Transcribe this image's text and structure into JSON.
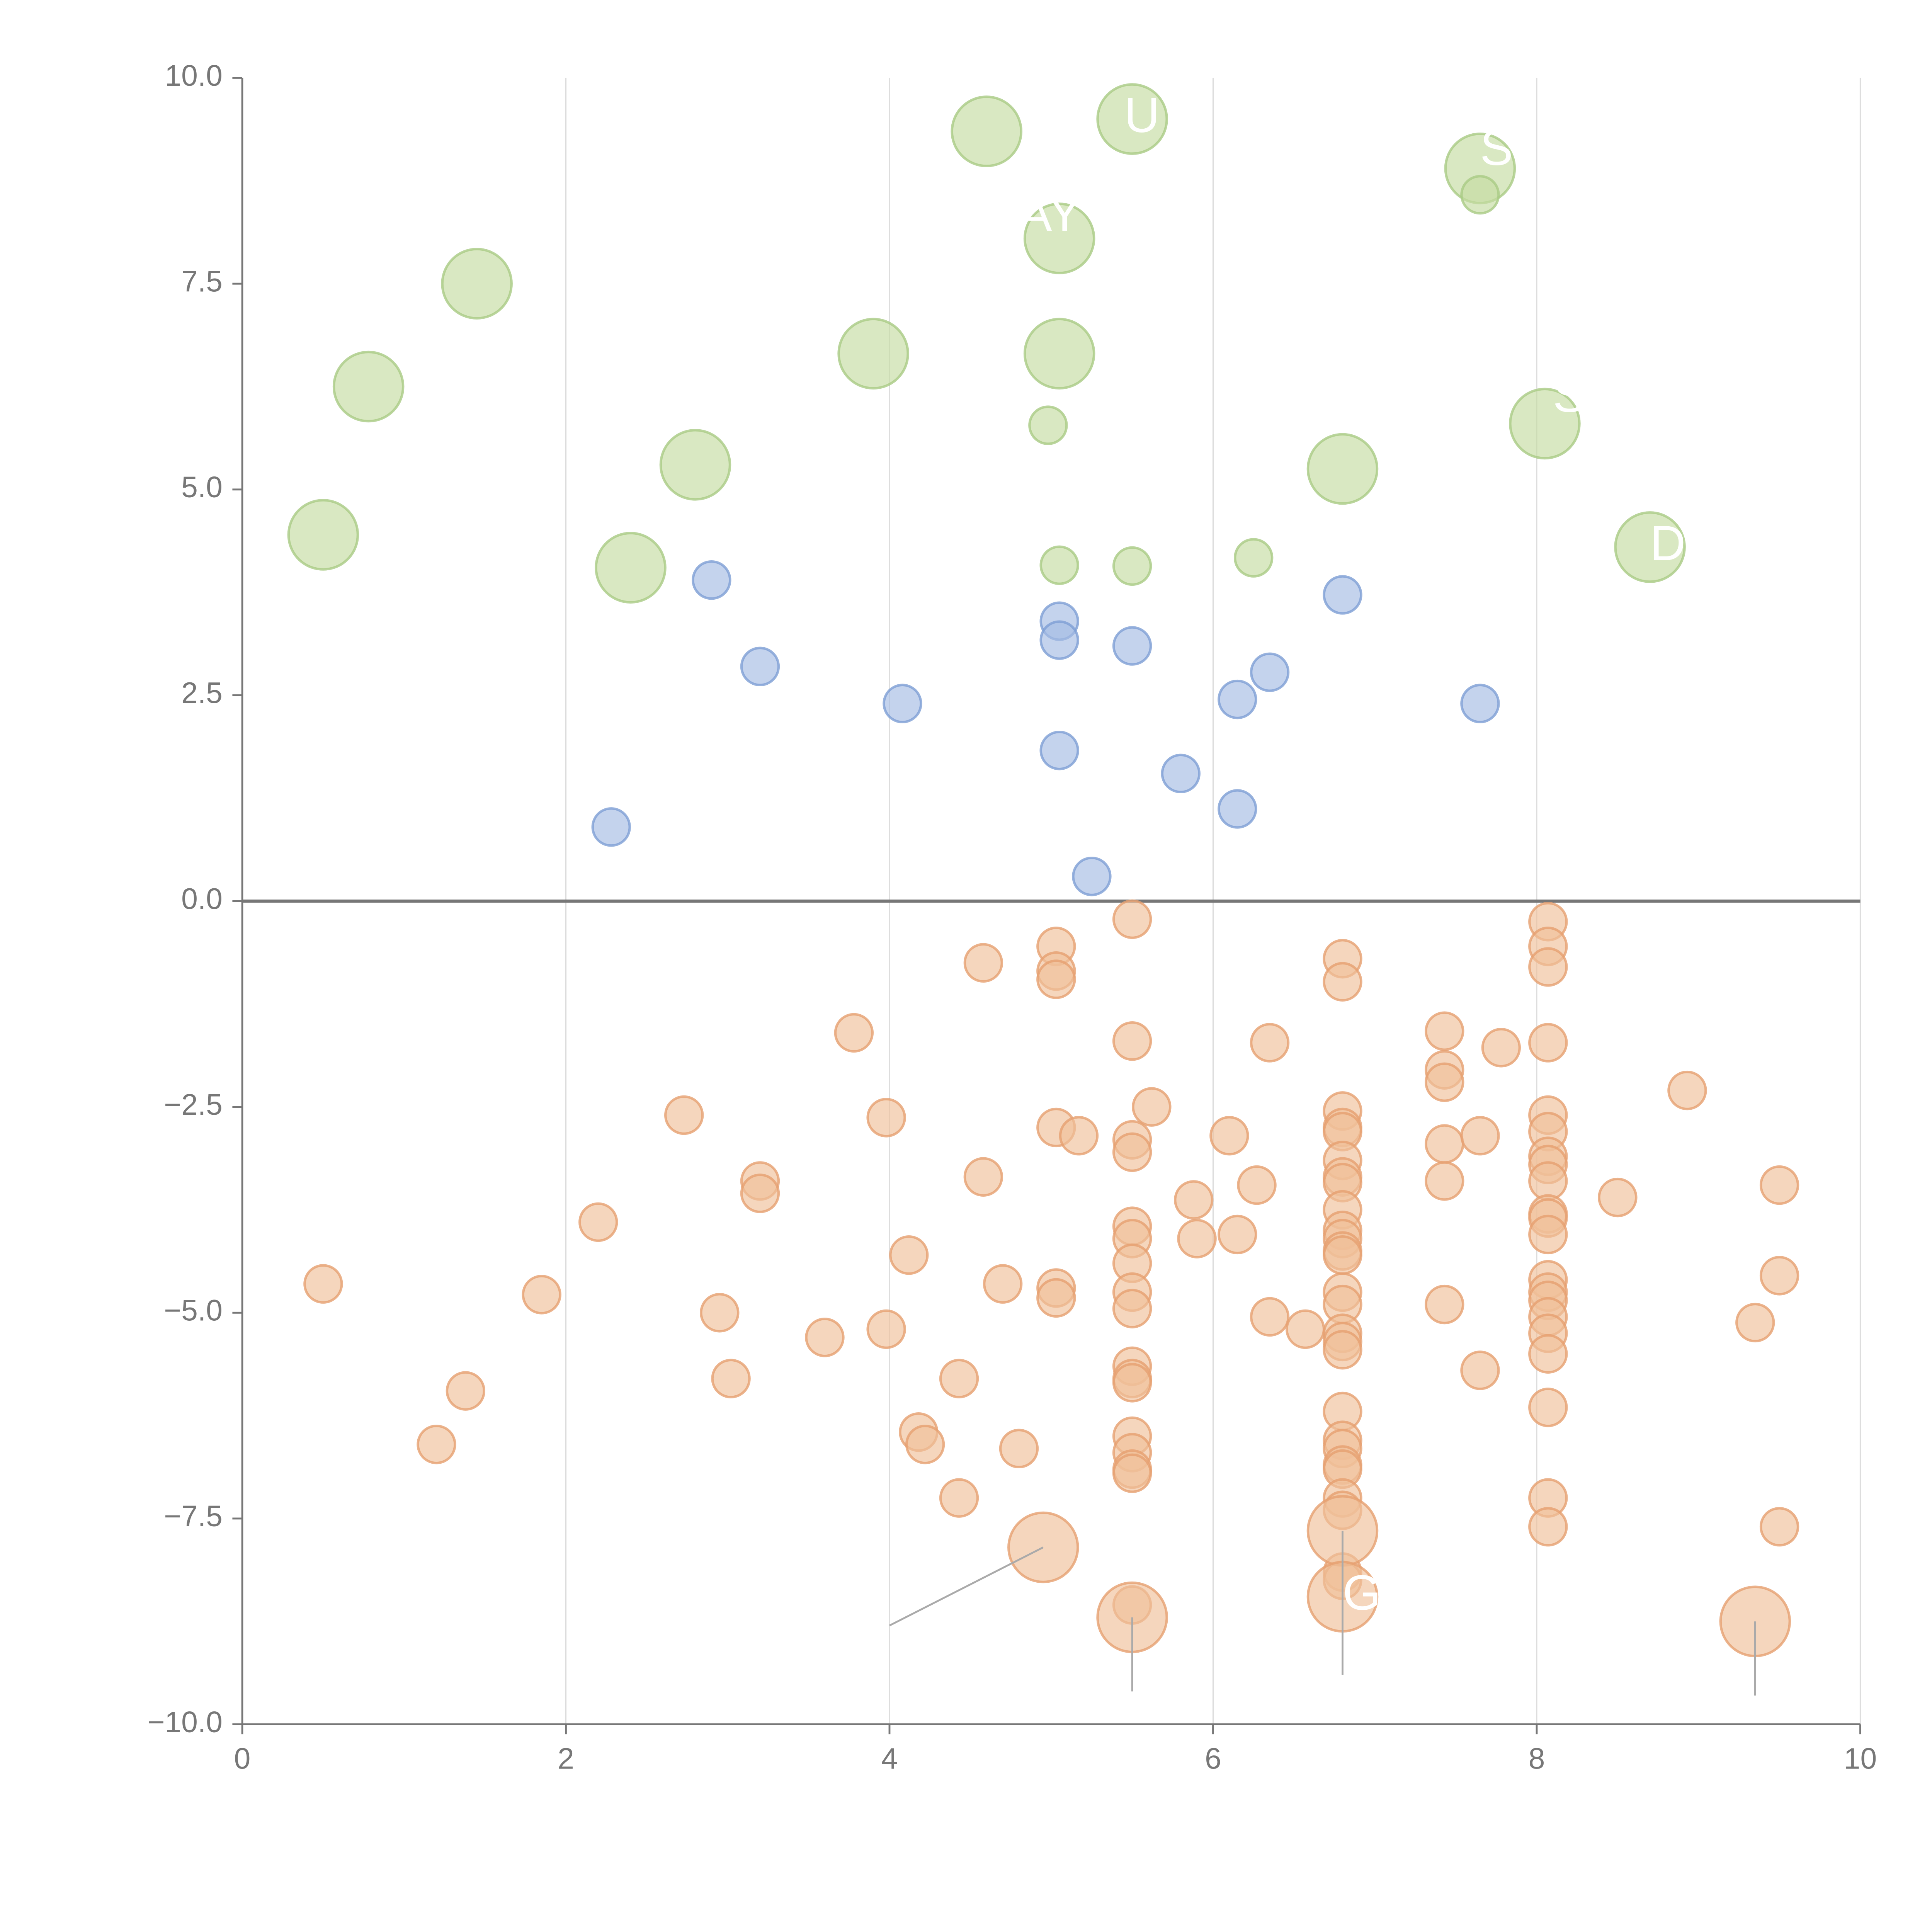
{
  "colors": {
    "green_fill": "#c5dca2",
    "green_stroke": "#a9cb84",
    "blue_fill": "#a4bce3",
    "blue_stroke": "#7e9fd4",
    "orange_fill": "#f0c09a",
    "orange_stroke": "#e6a070",
    "axis": "#777777",
    "grid": "#dddddd",
    "zero_line": "#777777",
    "tick_text": "#777777",
    "label_text": "#ffffff",
    "leader_dark": "#aaaaaa",
    "leader_light": "#ffffff"
  },
  "chart_data": {
    "type": "scatter",
    "title": "",
    "xlabel": "",
    "ylabel": "",
    "xlim": [
      0,
      10
    ],
    "ylim": [
      -10,
      10
    ],
    "grid": "vertical",
    "x_ticks": [
      "0",
      "2",
      "4",
      "6",
      "8",
      "10"
    ],
    "y_ticks": [
      "10.0",
      "7.5",
      "5.0",
      "2.5",
      "0.0",
      "−2.5",
      "−5.0",
      "−7.5",
      "−10.0"
    ],
    "series": [
      {
        "name": "green-large",
        "color": "#c5dca2",
        "size": "large",
        "points": [
          [
            0.5,
            4.45
          ],
          [
            0.78,
            6.25
          ],
          [
            1.45,
            7.5
          ],
          [
            2.4,
            4.05
          ],
          [
            2.8,
            5.3
          ],
          [
            3.9,
            6.65
          ],
          [
            4.6,
            9.35
          ],
          [
            5.05,
            8.05
          ],
          [
            5.05,
            6.65
          ],
          [
            5.5,
            9.5
          ],
          [
            6.8,
            5.25
          ],
          [
            7.65,
            8.9
          ],
          [
            8.05,
            5.8
          ],
          [
            8.7,
            4.3
          ]
        ]
      },
      {
        "name": "green-small",
        "color": "#c5dca2",
        "size": "small",
        "points": [
          [
            4.98,
            5.78
          ],
          [
            5.05,
            4.08
          ],
          [
            5.5,
            4.07
          ],
          [
            6.25,
            4.17
          ],
          [
            7.65,
            8.58
          ]
        ]
      },
      {
        "name": "blue",
        "color": "#a4bce3",
        "size": "small",
        "points": [
          [
            2.28,
            0.9
          ],
          [
            2.9,
            3.9
          ],
          [
            3.2,
            2.85
          ],
          [
            4.08,
            2.4
          ],
          [
            5.05,
            3.4
          ],
          [
            5.05,
            3.17
          ],
          [
            5.05,
            1.83
          ],
          [
            5.25,
            0.3
          ],
          [
            5.5,
            3.1
          ],
          [
            5.8,
            1.55
          ],
          [
            6.15,
            2.45
          ],
          [
            6.15,
            1.12
          ],
          [
            6.35,
            2.78
          ],
          [
            6.8,
            3.72
          ],
          [
            7.65,
            2.4
          ]
        ]
      },
      {
        "name": "orange-small",
        "color": "#f0c09a",
        "size": "small",
        "points": [
          [
            0.5,
            -4.65
          ],
          [
            1.2,
            -6.6
          ],
          [
            1.38,
            -5.95
          ],
          [
            1.85,
            -4.78
          ],
          [
            2.2,
            -3.9
          ],
          [
            2.73,
            -2.6
          ],
          [
            2.95,
            -5.0
          ],
          [
            3.02,
            -5.8
          ],
          [
            3.2,
            -3.4
          ],
          [
            3.2,
            -3.55
          ],
          [
            3.6,
            -5.3
          ],
          [
            3.78,
            -1.6
          ],
          [
            3.98,
            -2.63
          ],
          [
            3.98,
            -5.2
          ],
          [
            4.12,
            -4.3
          ],
          [
            4.18,
            -6.45
          ],
          [
            4.22,
            -6.6
          ],
          [
            4.43,
            -7.25
          ],
          [
            4.43,
            -5.8
          ],
          [
            4.58,
            -0.75
          ],
          [
            4.58,
            -3.35
          ],
          [
            4.7,
            -4.65
          ],
          [
            4.8,
            -6.65
          ],
          [
            5.03,
            -0.55
          ],
          [
            5.03,
            -0.85
          ],
          [
            5.03,
            -0.95
          ],
          [
            5.03,
            -2.75
          ],
          [
            5.03,
            -4.7
          ],
          [
            5.03,
            -4.82
          ],
          [
            5.17,
            -2.85
          ],
          [
            5.5,
            -0.22
          ],
          [
            5.5,
            -1.7
          ],
          [
            5.5,
            -2.9
          ],
          [
            5.5,
            -3.05
          ],
          [
            5.5,
            -3.95
          ],
          [
            5.5,
            -4.1
          ],
          [
            5.5,
            -4.4
          ],
          [
            5.5,
            -4.75
          ],
          [
            5.5,
            -4.95
          ],
          [
            5.5,
            -5.65
          ],
          [
            5.5,
            -5.8
          ],
          [
            5.5,
            -5.85
          ],
          [
            5.5,
            -6.5
          ],
          [
            5.5,
            -6.7
          ],
          [
            5.5,
            -6.9
          ],
          [
            5.5,
            -6.95
          ],
          [
            5.5,
            -8.55
          ],
          [
            5.62,
            -2.5
          ],
          [
            5.88,
            -3.63
          ],
          [
            5.9,
            -4.1
          ],
          [
            6.1,
            -2.85
          ],
          [
            6.15,
            -4.05
          ],
          [
            6.27,
            -3.45
          ],
          [
            6.35,
            -1.72
          ],
          [
            6.35,
            -5.05
          ],
          [
            6.57,
            -5.2
          ],
          [
            6.8,
            -0.7
          ],
          [
            6.8,
            -0.98
          ],
          [
            6.8,
            -2.55
          ],
          [
            6.8,
            -2.75
          ],
          [
            6.8,
            -2.8
          ],
          [
            6.8,
            -3.15
          ],
          [
            6.8,
            -3.35
          ],
          [
            6.8,
            -3.42
          ],
          [
            6.8,
            -3.75
          ],
          [
            6.8,
            -4.0
          ],
          [
            6.8,
            -4.1
          ],
          [
            6.8,
            -4.25
          ],
          [
            6.8,
            -4.3
          ],
          [
            6.8,
            -4.75
          ],
          [
            6.8,
            -4.9
          ],
          [
            6.8,
            -5.25
          ],
          [
            6.8,
            -5.35
          ],
          [
            6.8,
            -5.45
          ],
          [
            6.8,
            -6.2
          ],
          [
            6.8,
            -6.55
          ],
          [
            6.8,
            -6.65
          ],
          [
            6.8,
            -6.85
          ],
          [
            6.8,
            -6.9
          ],
          [
            6.8,
            -7.25
          ],
          [
            6.8,
            -7.4
          ],
          [
            6.8,
            -8.15
          ],
          [
            6.8,
            -8.25
          ],
          [
            7.43,
            -1.58
          ],
          [
            7.43,
            -2.05
          ],
          [
            7.43,
            -2.2
          ],
          [
            7.43,
            -2.95
          ],
          [
            7.43,
            -3.4
          ],
          [
            7.43,
            -4.9
          ],
          [
            7.65,
            -2.85
          ],
          [
            7.65,
            -5.7
          ],
          [
            7.78,
            -1.78
          ],
          [
            8.07,
            -0.25
          ],
          [
            8.07,
            -0.55
          ],
          [
            8.07,
            -0.8
          ],
          [
            8.07,
            -1.72
          ],
          [
            8.07,
            -2.6
          ],
          [
            8.07,
            -2.8
          ],
          [
            8.07,
            -3.1
          ],
          [
            8.07,
            -3.2
          ],
          [
            8.07,
            -3.4
          ],
          [
            8.07,
            -3.8
          ],
          [
            8.07,
            -3.85
          ],
          [
            8.07,
            -4.05
          ],
          [
            8.07,
            -4.6
          ],
          [
            8.07,
            -4.75
          ],
          [
            8.07,
            -4.85
          ],
          [
            8.07,
            -5.05
          ],
          [
            8.07,
            -5.25
          ],
          [
            8.07,
            -5.5
          ],
          [
            8.07,
            -6.15
          ],
          [
            8.07,
            -7.25
          ],
          [
            8.07,
            -7.6
          ],
          [
            8.5,
            -3.6
          ],
          [
            8.93,
            -2.3
          ],
          [
            9.35,
            -5.12
          ],
          [
            9.5,
            -3.45
          ],
          [
            9.5,
            -4.55
          ],
          [
            9.5,
            -7.6
          ]
        ]
      },
      {
        "name": "orange-large",
        "color": "#f0c09a",
        "size": "large",
        "points": [
          [
            4.95,
            -7.85
          ],
          [
            5.5,
            -8.7
          ],
          [
            6.8,
            -7.65
          ],
          [
            6.8,
            -8.45
          ],
          [
            9.35,
            -8.75
          ]
        ]
      }
    ],
    "annotations": [
      {
        "text": "AY",
        "x": 4.8,
        "y": 8.3
      },
      {
        "text": "U",
        "x": 5.45,
        "y": 9.5
      },
      {
        "text": "S",
        "x": 7.65,
        "y": 9.1
      },
      {
        "text": "S",
        "x": 8.1,
        "y": 6.1
      },
      {
        "text": "DIY",
        "x": 8.7,
        "y": 4.3
      },
      {
        "text": "G",
        "x": 6.8,
        "y": -8.45
      }
    ],
    "leader_lines": [
      {
        "x1": 4.95,
        "y1": -7.85,
        "x2": 4.0,
        "y2": -8.8
      },
      {
        "x1": 5.5,
        "y1": -8.7,
        "x2": 5.5,
        "y2": -9.6
      },
      {
        "x1": 6.8,
        "y1": -7.65,
        "x2": 6.8,
        "y2": -9.4
      },
      {
        "x1": 9.35,
        "y1": -8.75,
        "x2": 9.35,
        "y2": -9.65
      }
    ]
  }
}
